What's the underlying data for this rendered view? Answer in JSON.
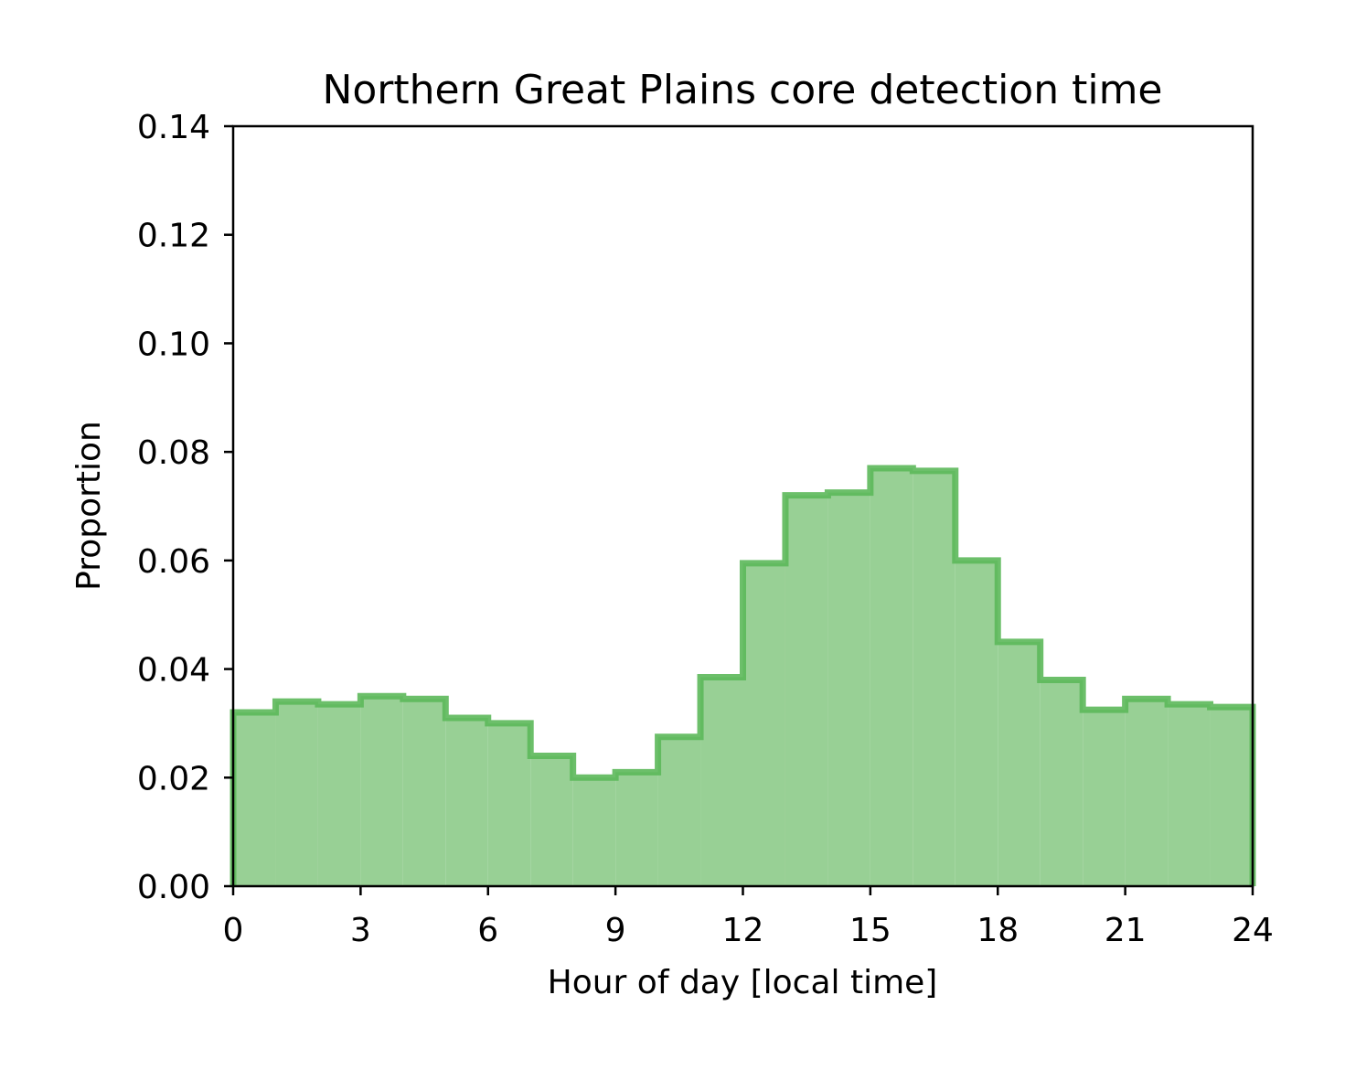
{
  "chart_data": {
    "type": "histogram",
    "title": "Northern Great Plains core detection time",
    "xlabel": "Hour of day [local time]",
    "ylabel": "Proportion",
    "xlim": [
      0,
      24
    ],
    "ylim": [
      0,
      0.14
    ],
    "xticks": [
      0,
      3,
      6,
      9,
      12,
      15,
      18,
      21,
      24
    ],
    "xtick_labels": [
      "0",
      "3",
      "6",
      "9",
      "12",
      "15",
      "18",
      "21",
      "24"
    ],
    "yticks": [
      0,
      0.02,
      0.04,
      0.06,
      0.08,
      0.1,
      0.12,
      0.14
    ],
    "ytick_labels": [
      "0.00",
      "0.02",
      "0.04",
      "0.06",
      "0.08",
      "0.10",
      "0.12",
      "0.14"
    ],
    "bin_edges": [
      0,
      1,
      2,
      3,
      4,
      5,
      6,
      7,
      8,
      9,
      10,
      11,
      12,
      13,
      14,
      15,
      16,
      17,
      18,
      19,
      20,
      21,
      22,
      23,
      24
    ],
    "values": [
      0.032,
      0.034,
      0.0335,
      0.035,
      0.0345,
      0.031,
      0.03,
      0.024,
      0.02,
      0.021,
      0.0275,
      0.0385,
      0.0595,
      0.072,
      0.0725,
      0.077,
      0.0765,
      0.06,
      0.045,
      0.038,
      0.0325,
      0.0345,
      0.0335,
      0.033
    ],
    "grid": false,
    "legend": "none",
    "colors": {
      "fill": "#98d095",
      "edge": "#5cb85a",
      "axis": "#000000"
    }
  }
}
